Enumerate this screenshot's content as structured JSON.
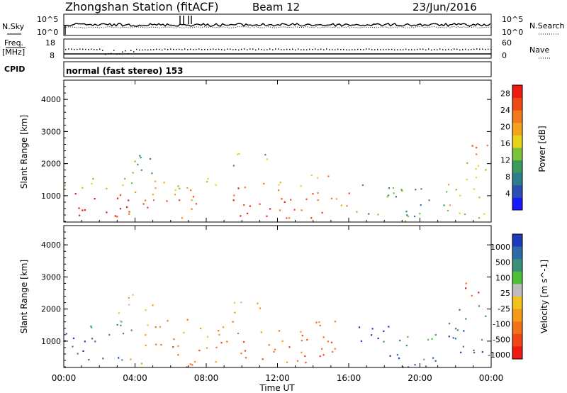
{
  "header": {
    "station": "Zhongshan Station (fitACF)",
    "beam": "Beam 12",
    "date": "23/Jun/2016"
  },
  "panels": {
    "nsky": {
      "left_label": "N.Sky",
      "left_ticks": [
        "10^5",
        "10^0"
      ],
      "right_label": "N.Search",
      "right_ticks": [
        "10^5",
        "10^0"
      ]
    },
    "freq": {
      "left_label_1": "Freq.",
      "left_label_2": "[MHz]",
      "left_ticks": [
        "18",
        "8"
      ],
      "right_label": "Nave",
      "right_ticks": [
        "60",
        "0"
      ]
    },
    "cpid": {
      "label": "CPID",
      "text": "normal (fast stereo) 153"
    }
  },
  "colors": {
    "power": [
      "#1a1aff",
      "#2a4fb0",
      "#2e7d8a",
      "#3a9a5a",
      "#7cc23a",
      "#e8d21a",
      "#f2a51a",
      "#f27a1a",
      "#f04a14",
      "#ee1a12"
    ],
    "velocity": [
      "#1e3ab8",
      "#2f6aa8",
      "#3a8f7a",
      "#4fbf3a",
      "#bdbdbd",
      "#f2c21a",
      "#f29a1a",
      "#f27218",
      "#f04614",
      "#ee1a12"
    ]
  },
  "chart_data": [
    {
      "type": "heatmap",
      "name": "power",
      "ylabel": "Slant Range [km]",
      "yticks": [
        1000,
        2000,
        3000,
        4000
      ],
      "ylim": [
        180,
        4600
      ],
      "colorbar": {
        "label": "Power [dB]",
        "ticks": [
          4,
          8,
          12,
          16,
          20,
          24,
          28
        ],
        "range": [
          0,
          30
        ]
      },
      "scatter_blocks": [
        {
          "t0": 0.0,
          "t1": 3.6,
          "r0": 200,
          "r1": 1200,
          "level": 9
        },
        {
          "t0": 0.0,
          "t1": 4.0,
          "r0": 1200,
          "r1": 1700,
          "level": 5
        },
        {
          "t0": 3.0,
          "t1": 5.0,
          "r0": 1500,
          "r1": 2600,
          "level": 3
        },
        {
          "t0": 3.6,
          "t1": 8.0,
          "r0": 200,
          "r1": 1200,
          "level": 7
        },
        {
          "t0": 4.5,
          "t1": 9.5,
          "r0": 1200,
          "r1": 1700,
          "level": 5
        },
        {
          "t0": 8.0,
          "t1": 14.0,
          "r0": 300,
          "r1": 1300,
          "level": 8
        },
        {
          "t0": 9.0,
          "t1": 11.5,
          "r0": 1900,
          "r1": 2400,
          "level": 4
        },
        {
          "t0": 11.0,
          "t1": 15.6,
          "r0": 1300,
          "r1": 1700,
          "level": 6
        },
        {
          "t0": 14.0,
          "t1": 16.0,
          "r0": 300,
          "r1": 1300,
          "level": 7
        },
        {
          "t0": 16.4,
          "t1": 19.0,
          "r0": 400,
          "r1": 1600,
          "level": 3
        },
        {
          "t0": 19.0,
          "t1": 21.5,
          "r0": 200,
          "r1": 1400,
          "level": 3
        },
        {
          "t0": 21.5,
          "t1": 23.8,
          "r0": 300,
          "r1": 2200,
          "level": 5
        },
        {
          "t0": 22.5,
          "t1": 23.8,
          "r0": 2200,
          "r1": 3000,
          "level": 7
        }
      ]
    },
    {
      "type": "heatmap",
      "name": "velocity",
      "ylabel": "Slant Range [km]",
      "yticks": [
        1000,
        2000,
        3000,
        4000
      ],
      "ylim": [
        180,
        4600
      ],
      "xlabel": "Time UT",
      "xticks": [
        "00:00",
        "04:00",
        "08:00",
        "12:00",
        "16:00",
        "20:00",
        "00:00"
      ],
      "xlim": [
        0,
        24
      ],
      "colorbar": {
        "label": "Velocity [m s^-1]",
        "ticks": [
          "1000",
          "500",
          "100",
          "25",
          "-25",
          "-100",
          "-500",
          "-1000"
        ]
      },
      "scatter_blocks": [
        {
          "t0": 0.0,
          "t1": 3.6,
          "r0": 200,
          "r1": 1300,
          "level": 1
        },
        {
          "t0": 0.0,
          "t1": 4.0,
          "r0": 1300,
          "r1": 1700,
          "level": 3
        },
        {
          "t0": 3.0,
          "t1": 5.0,
          "r0": 1500,
          "r1": 2600,
          "level": 5
        },
        {
          "t0": 3.6,
          "t1": 8.0,
          "r0": 200,
          "r1": 1000,
          "level": 7
        },
        {
          "t0": 4.5,
          "t1": 9.5,
          "r0": 1000,
          "r1": 1700,
          "level": 6
        },
        {
          "t0": 8.0,
          "t1": 14.0,
          "r0": 300,
          "r1": 1300,
          "level": 7
        },
        {
          "t0": 9.0,
          "t1": 11.5,
          "r0": 1900,
          "r1": 2400,
          "level": 5
        },
        {
          "t0": 11.0,
          "t1": 15.6,
          "r0": 1300,
          "r1": 1700,
          "level": 6
        },
        {
          "t0": 14.0,
          "t1": 16.0,
          "r0": 300,
          "r1": 1300,
          "level": 8
        },
        {
          "t0": 16.4,
          "t1": 19.0,
          "r0": 400,
          "r1": 1600,
          "level": 1
        },
        {
          "t0": 19.0,
          "t1": 21.5,
          "r0": 200,
          "r1": 1400,
          "level": 2
        },
        {
          "t0": 21.5,
          "t1": 23.8,
          "r0": 300,
          "r1": 2200,
          "level": 1
        },
        {
          "t0": 22.5,
          "t1": 23.8,
          "r0": 2200,
          "r1": 3000,
          "level": 8
        }
      ]
    }
  ]
}
